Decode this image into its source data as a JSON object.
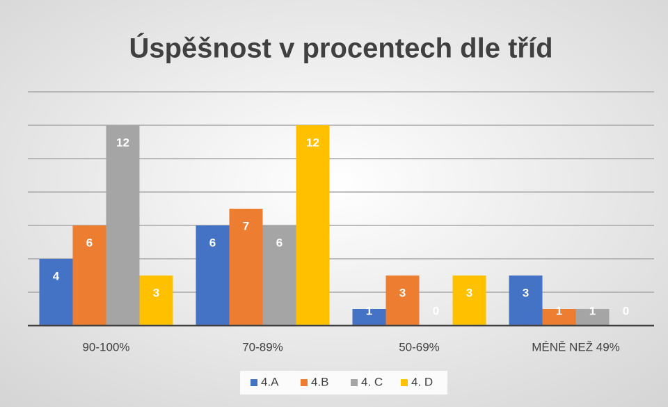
{
  "chart_data": {
    "type": "bar",
    "title": "Úspěšnost v procentech dle tříd",
    "categories": [
      "90-100%",
      "70-89%",
      "50-69%",
      "MÉNĚ NEŽ 49%"
    ],
    "series": [
      {
        "name": "4.A",
        "color": "#4472c4",
        "values": [
          4,
          6,
          1,
          3
        ]
      },
      {
        "name": "4.B",
        "color": "#ed7d31",
        "values": [
          6,
          7,
          3,
          1
        ]
      },
      {
        "name": "4. C",
        "color": "#a5a5a5",
        "values": [
          12,
          6,
          0,
          1
        ]
      },
      {
        "name": "4. D",
        "color": "#ffc000",
        "values": [
          3,
          12,
          3,
          0
        ]
      }
    ],
    "ylim": [
      0,
      14
    ],
    "yticks": [
      0,
      2,
      4,
      6,
      8,
      10,
      12,
      14
    ],
    "grid": true,
    "legend": "bottom"
  }
}
